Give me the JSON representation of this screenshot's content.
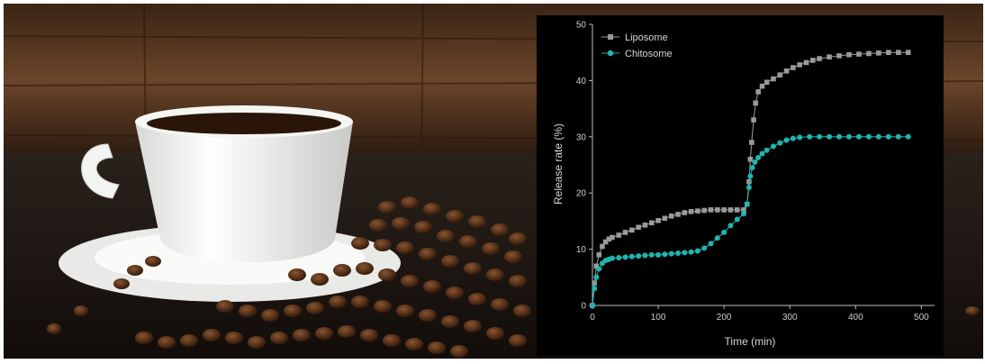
{
  "background": {
    "description_colors": {
      "wood_dark": "#2b1a10",
      "wood_mid": "#6b4226",
      "table": "#1c1510",
      "cup": "#f7f7f5",
      "coffee": "#2a1608",
      "bean": "#4a2612"
    }
  },
  "chart_data": {
    "type": "scatter",
    "title": "",
    "xlabel": "Time (min)",
    "ylabel": "Release rate (%)",
    "xlim": [
      0,
      520
    ],
    "ylim": [
      0,
      50
    ],
    "xticks": [
      0,
      100,
      200,
      300,
      400,
      500
    ],
    "yticks": [
      0,
      10,
      20,
      30,
      40,
      50
    ],
    "grid": false,
    "legend_position": "top-left",
    "series": [
      {
        "name": "Liposome",
        "color": "#9a9a9a",
        "marker": "square",
        "points": [
          [
            0,
            0
          ],
          [
            3,
            4
          ],
          [
            6,
            7
          ],
          [
            10,
            9
          ],
          [
            15,
            10.5
          ],
          [
            20,
            11.3
          ],
          [
            25,
            11.8
          ],
          [
            30,
            12.1
          ],
          [
            40,
            12.5
          ],
          [
            50,
            13
          ],
          [
            60,
            13.4
          ],
          [
            70,
            13.9
          ],
          [
            80,
            14.3
          ],
          [
            90,
            14.7
          ],
          [
            100,
            15.1
          ],
          [
            110,
            15.5
          ],
          [
            120,
            15.9
          ],
          [
            130,
            16.2
          ],
          [
            140,
            16.5
          ],
          [
            150,
            16.7
          ],
          [
            160,
            16.8
          ],
          [
            170,
            16.9
          ],
          [
            180,
            17
          ],
          [
            190,
            17
          ],
          [
            200,
            17
          ],
          [
            210,
            17
          ],
          [
            220,
            17
          ],
          [
            230,
            17
          ],
          [
            235,
            18
          ],
          [
            238,
            22
          ],
          [
            240,
            26
          ],
          [
            242,
            29
          ],
          [
            245,
            33
          ],
          [
            248,
            36
          ],
          [
            252,
            38
          ],
          [
            258,
            39
          ],
          [
            265,
            39.7
          ],
          [
            275,
            40.3
          ],
          [
            285,
            41
          ],
          [
            295,
            41.7
          ],
          [
            305,
            42.3
          ],
          [
            315,
            42.8
          ],
          [
            325,
            43.2
          ],
          [
            335,
            43.6
          ],
          [
            345,
            43.9
          ],
          [
            360,
            44.2
          ],
          [
            375,
            44.4
          ],
          [
            390,
            44.6
          ],
          [
            405,
            44.7
          ],
          [
            420,
            44.8
          ],
          [
            435,
            44.9
          ],
          [
            450,
            45
          ],
          [
            465,
            45
          ],
          [
            480,
            45
          ]
        ]
      },
      {
        "name": "Chitosome",
        "color": "#1fb5b0",
        "marker": "circle",
        "points": [
          [
            0,
            0
          ],
          [
            3,
            3
          ],
          [
            6,
            5
          ],
          [
            10,
            6.5
          ],
          [
            15,
            7.5
          ],
          [
            20,
            8
          ],
          [
            25,
            8.2
          ],
          [
            30,
            8.4
          ],
          [
            40,
            8.5
          ],
          [
            50,
            8.6
          ],
          [
            60,
            8.7
          ],
          [
            70,
            8.8
          ],
          [
            80,
            8.9
          ],
          [
            90,
            9
          ],
          [
            100,
            9
          ],
          [
            110,
            9.1
          ],
          [
            120,
            9.2
          ],
          [
            130,
            9.3
          ],
          [
            140,
            9.4
          ],
          [
            150,
            9.5
          ],
          [
            160,
            9.7
          ],
          [
            170,
            10.2
          ],
          [
            180,
            11
          ],
          [
            190,
            12
          ],
          [
            200,
            13
          ],
          [
            210,
            14.2
          ],
          [
            220,
            15.3
          ],
          [
            230,
            16.3
          ],
          [
            235,
            18
          ],
          [
            238,
            21
          ],
          [
            240,
            23
          ],
          [
            243,
            24.5
          ],
          [
            247,
            25.5
          ],
          [
            252,
            26.3
          ],
          [
            258,
            27
          ],
          [
            265,
            27.6
          ],
          [
            275,
            28.3
          ],
          [
            285,
            28.9
          ],
          [
            295,
            29.4
          ],
          [
            305,
            29.7
          ],
          [
            315,
            29.9
          ],
          [
            330,
            30
          ],
          [
            345,
            30
          ],
          [
            360,
            30
          ],
          [
            375,
            30
          ],
          [
            390,
            30
          ],
          [
            405,
            30
          ],
          [
            420,
            30
          ],
          [
            435,
            30
          ],
          [
            450,
            30
          ],
          [
            465,
            30
          ],
          [
            480,
            30
          ]
        ]
      }
    ]
  }
}
